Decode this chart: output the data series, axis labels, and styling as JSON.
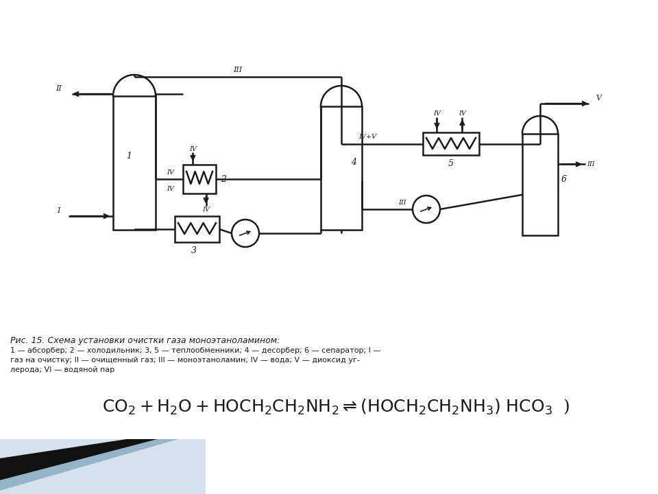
{
  "bg_color": "#ffffff",
  "line_color": "#1a1a1a",
  "text_color": "#1a1a1a",
  "title": "Рис. 15. Схема установки очистки газа моноэтаноламином:",
  "cap2": "1 — абсорбер; 2 — холодильник; 3, 5 — теплообменники; 4 — десорбер; 6 — сепаратор; I —",
  "cap3": "газ на очистку; II — очищенный газ; III — моноэтаноламин; IV — вода; V — диоксид уг-",
  "cap4": "лерода; VI — водяной пар"
}
